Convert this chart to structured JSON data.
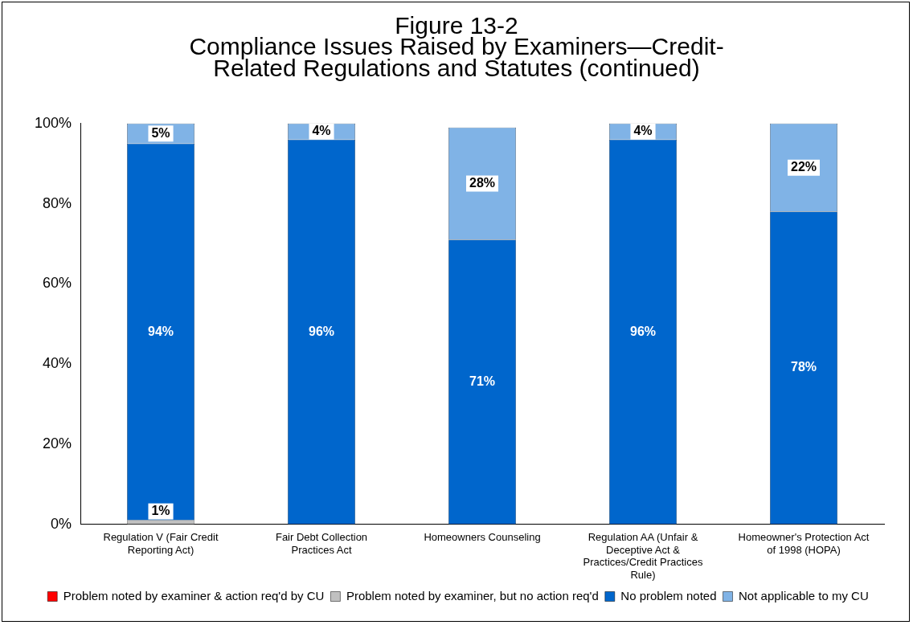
{
  "chart_data": {
    "type": "bar",
    "stacked": true,
    "title": "Figure 13-2",
    "subtitle": "Compliance Issues Raised by Examiners—Credit-Related Regulations and Statutes (continued)",
    "categories": [
      "Regulation V (Fair Credit Reporting Act)",
      "Fair Debt Collection Practices Act",
      "Homeowners Counseling",
      "Regulation AA (Unfair & Deceptive Act & Practices/Credit Practices Rule)",
      "Homeowner's Protection Act of 1998 (HOPA)"
    ],
    "series": [
      {
        "name": "Problem noted by examiner & action req'd by CU",
        "color": "#ff0000",
        "values": [
          null,
          null,
          null,
          null,
          null
        ],
        "value_labels": [
          null,
          null,
          null,
          null,
          null
        ]
      },
      {
        "name": "Problem noted by examiner, but no action req'd",
        "color": "#c0c0c0",
        "values": [
          1,
          0,
          0,
          0,
          0
        ],
        "value_labels": [
          "1%",
          null,
          null,
          null,
          null
        ]
      },
      {
        "name": "No problem noted",
        "color": "#0066cc",
        "values": [
          94,
          96,
          71,
          96,
          78
        ],
        "value_labels": [
          "94%",
          "96%",
          "71%",
          "96%",
          "78%"
        ]
      },
      {
        "name": "Not applicable to my CU",
        "color": "#80b3e6",
        "values": [
          5,
          4,
          28,
          4,
          22
        ],
        "value_labels": [
          "5%",
          "4%",
          "28%",
          "4%",
          "22%"
        ]
      }
    ],
    "ylim": [
      0,
      100
    ],
    "yticks": [
      {
        "value": 0,
        "label": "0%"
      },
      {
        "value": 20,
        "label": "20%"
      },
      {
        "value": 40,
        "label": "40%"
      },
      {
        "value": 60,
        "label": "60%"
      },
      {
        "value": 80,
        "label": "80%"
      },
      {
        "value": 100,
        "label": "100%"
      }
    ],
    "grid": false,
    "legend": "bottom"
  }
}
